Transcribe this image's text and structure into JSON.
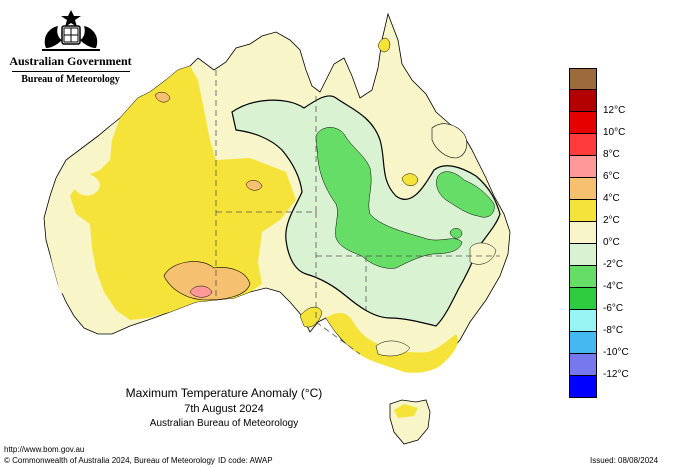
{
  "header": {
    "government": "Australian Government",
    "bureau": "Bureau of Meteorology"
  },
  "legend": {
    "items": [
      {
        "label": "",
        "color": "#9c6a3c"
      },
      {
        "label": "12°C",
        "color": "#b30000"
      },
      {
        "label": "10°C",
        "color": "#e60000"
      },
      {
        "label": "8°C",
        "color": "#ff3c3c"
      },
      {
        "label": "6°C",
        "color": "#ff9999"
      },
      {
        "label": "4°C",
        "color": "#f5c070"
      },
      {
        "label": "2°C",
        "color": "#f5e33a"
      },
      {
        "label": "0°C",
        "color": "#f8f6c8"
      },
      {
        "label": "-2°C",
        "color": "#d8f2d2"
      },
      {
        "label": "-4°C",
        "color": "#66dd66"
      },
      {
        "label": "-6°C",
        "color": "#2ecc40"
      },
      {
        "label": "-8°C",
        "color": "#99f4f4"
      },
      {
        "label": "-10°C",
        "color": "#44b8f0"
      },
      {
        "label": "-12°C",
        "color": "#7777ee"
      },
      {
        "label": "",
        "color": "#0000ff"
      }
    ]
  },
  "caption": {
    "title": "Maximum Temperature Anomaly (°C)",
    "date": "7th August 2024",
    "source": "Australian Bureau of Meteorology"
  },
  "footer": {
    "url": "http://www.bom.gov.au",
    "copyright": "© Commonwealth of Australia 2024, Bureau of Meteorology",
    "id_code": "ID code: AWAP",
    "issued": "Issued: 08/08/2024"
  },
  "colors": {
    "anomaly_0_2": "#f8f6c8",
    "anomaly_2_4": "#f5e33a",
    "anomaly_4_6": "#f5c070",
    "anomaly_6_8": "#ff9999",
    "anomaly_m2_0": "#d8f2d2",
    "anomaly_m4_m2": "#66dd66"
  }
}
